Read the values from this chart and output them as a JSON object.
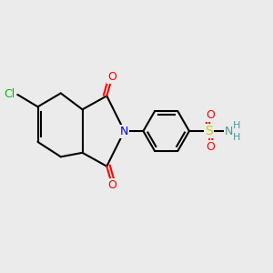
{
  "bg_color": "#ebebeb",
  "bond_color": "#000000",
  "bond_width": 1.5,
  "atom_colors": {
    "O": "#ff0000",
    "N": "#0000ff",
    "Cl": "#00bb00",
    "S": "#cccc00",
    "NH": "#4d9999",
    "C": "#000000"
  },
  "font_size": 9,
  "fig_bg": "#ebebeb"
}
